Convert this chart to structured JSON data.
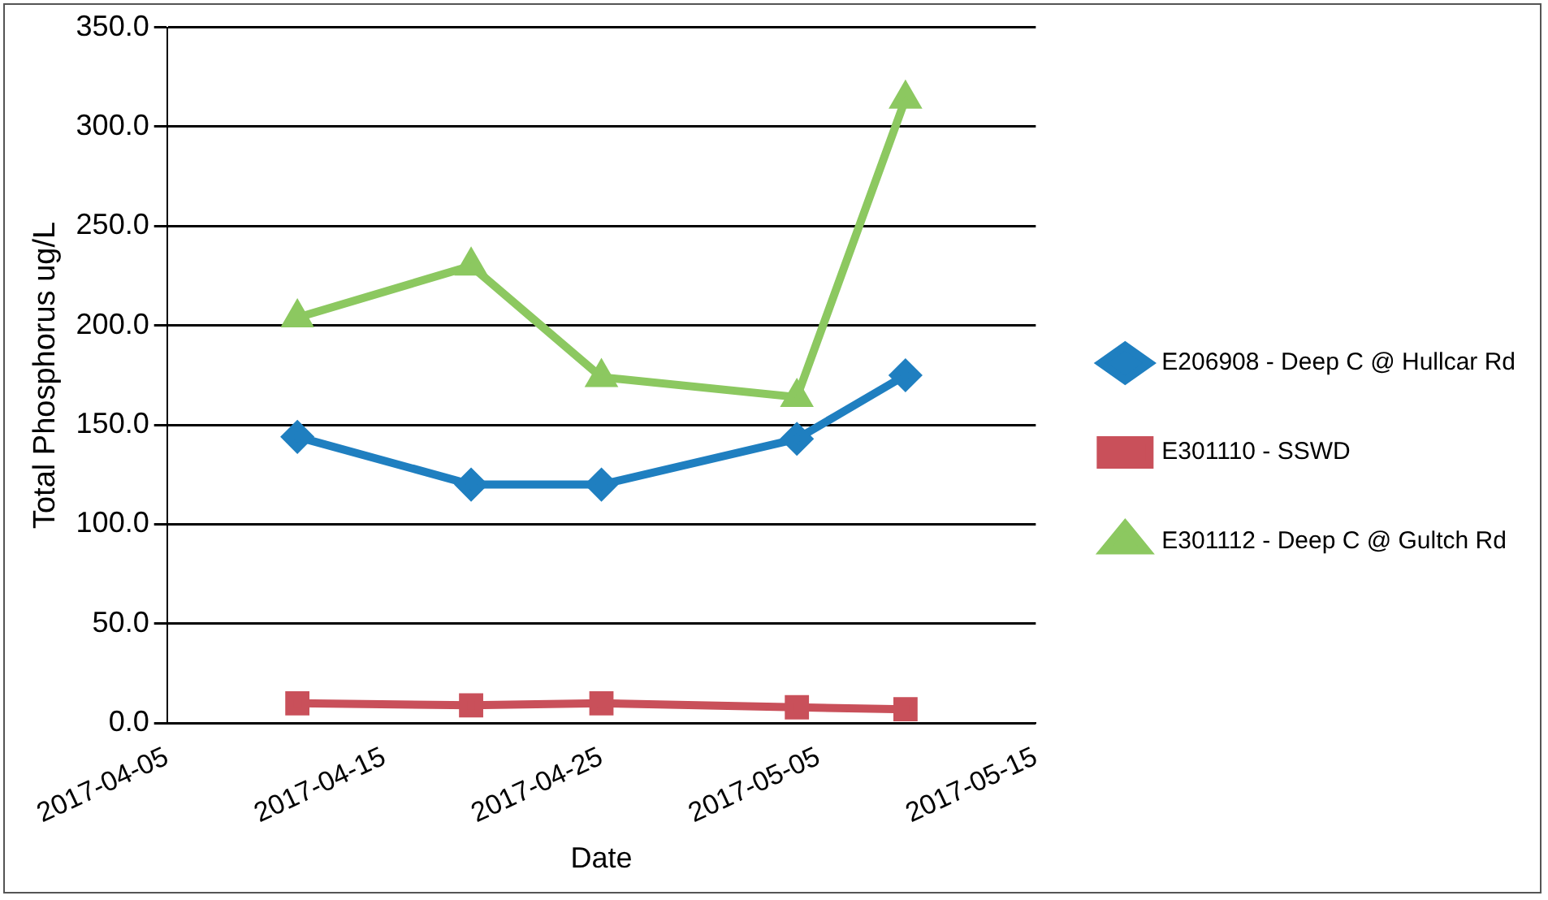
{
  "chart_data": {
    "type": "line",
    "xlabel": "Date",
    "ylabel": "Total Phosphorus ug/L",
    "x": [
      "2017-04-11",
      "2017-04-19",
      "2017-04-25",
      "2017-05-04",
      "2017-05-09"
    ],
    "series": [
      {
        "name": "E206908 - Deep C @ Hullcar Rd",
        "color": "#1f7fc0",
        "marker": "diamond",
        "values": [
          144,
          120,
          120,
          143,
          175
        ]
      },
      {
        "name": "E301110 - SSWD",
        "color": "#c9505a",
        "marker": "square",
        "values": [
          10,
          9,
          10,
          8,
          7
        ]
      },
      {
        "name": "E301112 - Deep C @ Gultch Rd",
        "color": "#8cc860",
        "marker": "triangle",
        "values": [
          204,
          230,
          174,
          164,
          314
        ]
      }
    ],
    "xlim": [
      "2017-04-05",
      "2017-05-15"
    ],
    "xticks": [
      "2017-04-05",
      "2017-04-15",
      "2017-04-25",
      "2017-05-05",
      "2017-05-15"
    ],
    "ylim": [
      0,
      350
    ],
    "yticks": [
      {
        "value": 0,
        "label": "0.0"
      },
      {
        "value": 50,
        "label": "50.0"
      },
      {
        "value": 100,
        "label": "100.0"
      },
      {
        "value": 150,
        "label": "150.0"
      },
      {
        "value": 200,
        "label": "200.0"
      },
      {
        "value": 250,
        "label": "250.0"
      },
      {
        "value": 300,
        "label": "300.0"
      },
      {
        "value": 350,
        "label": "350.0"
      }
    ],
    "grid": "y",
    "legend": "right",
    "line_style": "solid"
  }
}
